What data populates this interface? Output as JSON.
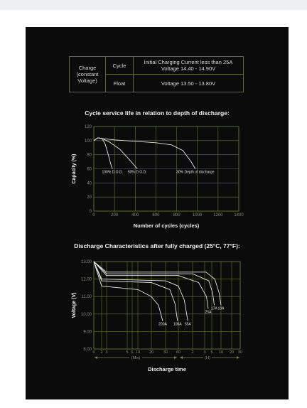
{
  "spec_table": {
    "row_header": [
      "Charge",
      "(constant",
      "Voltage)"
    ],
    "rows": [
      {
        "mode": "Cycle",
        "value_lines": [
          "Initial Charging Current less than 25A",
          "Voltage 14.40 - 14.90V"
        ]
      },
      {
        "mode": "Float",
        "value_lines": [
          "Voltage 13.50 - 13.80V"
        ]
      }
    ]
  },
  "chart_data": [
    {
      "type": "line",
      "title": "Cycle service life in relation to depth of discharge:",
      "xlabel": "Number of cycles (cycles)",
      "ylabel": "Capacity (%)",
      "xlim": [
        0,
        1400
      ],
      "ylim": [
        0,
        120
      ],
      "grid": true,
      "x_ticks": [
        "0",
        "200",
        "400",
        "600",
        "800",
        "1000",
        "1200",
        "1400"
      ],
      "y_ticks": [
        "0",
        "20",
        "40",
        "60",
        "80",
        "100",
        "120"
      ],
      "series": [
        {
          "name": "100% D.O.D.",
          "x": [
            0,
            40,
            80,
            110,
            140,
            165,
            180
          ],
          "y": [
            100,
            104,
            103,
            95,
            80,
            66,
            60
          ]
        },
        {
          "name": "50% D.O.D.",
          "x": [
            0,
            40,
            80,
            150,
            250,
            350,
            420
          ],
          "y": [
            100,
            104,
            103,
            98,
            88,
            72,
            60
          ]
        },
        {
          "name": "30% Depth of discharge",
          "x": [
            0,
            40,
            80,
            200,
            400,
            600,
            750,
            860,
            940,
            980
          ],
          "y": [
            100,
            104,
            103,
            101,
            99,
            97,
            94,
            86,
            70,
            60
          ]
        }
      ]
    },
    {
      "type": "line",
      "title": "Discharge Characteristics after fully charged (25°C, 77°F):",
      "xlabel": "Discharge time",
      "ylabel": "Voltage (V)",
      "ylim": [
        8.0,
        13.0
      ],
      "grid": true,
      "y_ticks": [
        "13.00",
        "12.00",
        "11.00",
        "10.00",
        "9.00",
        "8.00"
      ],
      "x_ticks": [
        "0",
        "2",
        "3",
        "5",
        "6",
        "10",
        "20",
        "30",
        "60",
        "2",
        "3",
        "5",
        "10",
        "20",
        "30"
      ],
      "x_unit_labels": [
        "(Min)",
        "(H)"
      ],
      "series": [
        {
          "name": "200A",
          "x_min": [
            0,
            2,
            10,
            20,
            25,
            28
          ],
          "y": [
            13.0,
            11.6,
            11.4,
            11.0,
            10.5,
            9.6
          ]
        },
        {
          "name": "100A",
          "x_min": [
            0,
            2,
            20,
            40,
            52,
            58
          ],
          "y": [
            13.0,
            11.9,
            11.8,
            11.4,
            10.6,
            9.6
          ]
        },
        {
          "name": "55A",
          "x_min": [
            0,
            2,
            30,
            60,
            85,
            100
          ],
          "y": [
            13.0,
            12.0,
            11.9,
            11.6,
            10.8,
            9.6
          ]
        },
        {
          "name": "25A",
          "x_min": [
            0,
            3,
            60,
            150,
            210,
            240
          ],
          "y": [
            13.0,
            12.2,
            12.2,
            11.8,
            11.0,
            10.3
          ]
        },
        {
          "name": "17A",
          "x_min": [
            0,
            3,
            120,
            250,
            330,
            380
          ],
          "y": [
            13.0,
            12.3,
            12.3,
            11.9,
            11.2,
            10.5
          ]
        },
        {
          "name": "10A",
          "x_min": [
            0,
            3,
            200,
            400,
            540,
            600
          ],
          "y": [
            13.0,
            12.4,
            12.4,
            12.0,
            11.2,
            10.5
          ]
        }
      ]
    }
  ]
}
